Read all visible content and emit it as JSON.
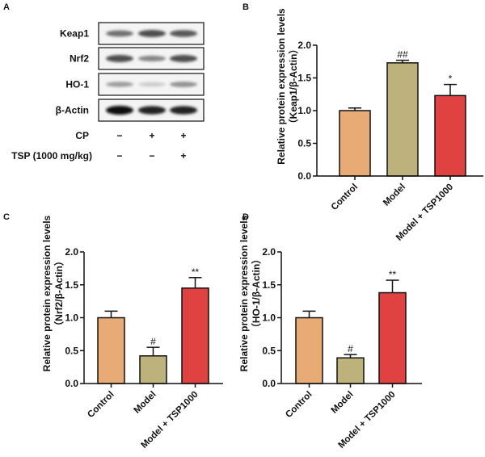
{
  "blot": {
    "panel_label": "A",
    "rows": [
      {
        "label": "Keap1",
        "band_intensity": [
          0.55,
          0.7,
          0.65
        ]
      },
      {
        "label": "Nrf2",
        "band_intensity": [
          0.7,
          0.45,
          0.7
        ]
      },
      {
        "label": "HO-1",
        "band_intensity": [
          0.35,
          0.15,
          0.4
        ]
      },
      {
        "label": "β-Actin",
        "band_intensity": [
          1.0,
          0.9,
          0.9
        ]
      }
    ],
    "conditions": [
      {
        "label": "CP",
        "lanes": [
          "−",
          "+",
          "+"
        ]
      },
      {
        "label": "TSP (1000 mg/kg)",
        "lanes": [
          "−",
          "−",
          "+"
        ]
      }
    ]
  },
  "chart_data": [
    {
      "panel_label": "B",
      "type": "bar",
      "categories": [
        "Control",
        "Model",
        "Model + TSP1000"
      ],
      "values": [
        1.0,
        1.73,
        1.23
      ],
      "error_upper": [
        1.04,
        1.77,
        1.4
      ],
      "significance": [
        "",
        "##",
        "*"
      ],
      "colors": [
        "#E8AB76",
        "#BEB27C",
        "#E04141"
      ],
      "ylabel": "Relative protein expression levels",
      "ylabel2": "（Keap1/β-Actin）",
      "ylim": [
        0,
        2.0
      ],
      "yticks": [
        "0.0",
        "0.5",
        "1.0",
        "1.5",
        "2.0"
      ]
    },
    {
      "panel_label": "C",
      "type": "bar",
      "categories": [
        "Control",
        "Model",
        "Model + TSP1000"
      ],
      "values": [
        1.0,
        0.42,
        1.45
      ],
      "error_upper": [
        1.1,
        0.55,
        1.61
      ],
      "significance": [
        "",
        "#",
        "**"
      ],
      "colors": [
        "#E8AB76",
        "#BEB27C",
        "#E04141"
      ],
      "ylabel": "Relative protein expression levels",
      "ylabel2": "（Nrf2/β-Actin）",
      "ylim": [
        0,
        2.0
      ],
      "yticks": [
        "0.0",
        "0.5",
        "1.0",
        "1.5",
        "2.0"
      ]
    },
    {
      "panel_label": "D",
      "type": "bar",
      "categories": [
        "Control",
        "Model",
        "Model + TSP1000"
      ],
      "values": [
        1.0,
        0.39,
        1.38
      ],
      "error_upper": [
        1.1,
        0.44,
        1.57
      ],
      "significance": [
        "",
        "#",
        "**"
      ],
      "colors": [
        "#E8AB76",
        "#BEB27C",
        "#E04141"
      ],
      "ylabel": "Relative protein expression levels",
      "ylabel2": "（HO-1/β-Actin）",
      "ylim": [
        0,
        2.0
      ],
      "yticks": [
        "0.0",
        "0.5",
        "1.0",
        "1.5",
        "2.0"
      ]
    }
  ]
}
